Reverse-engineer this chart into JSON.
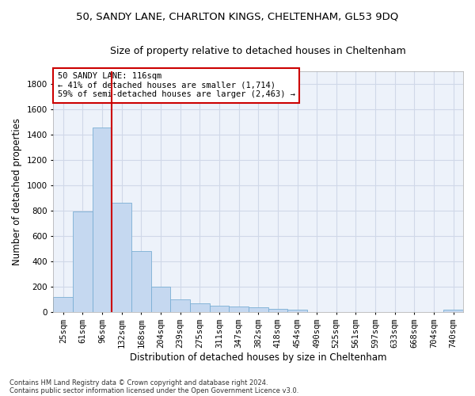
{
  "title_line1": "50, SANDY LANE, CHARLTON KINGS, CHELTENHAM, GL53 9DQ",
  "title_line2": "Size of property relative to detached houses in Cheltenham",
  "xlabel": "Distribution of detached houses by size in Cheltenham",
  "ylabel": "Number of detached properties",
  "footnote1": "Contains HM Land Registry data © Crown copyright and database right 2024.",
  "footnote2": "Contains public sector information licensed under the Open Government Licence v3.0.",
  "annotation_title": "50 SANDY LANE: 116sqm",
  "annotation_line1": "← 41% of detached houses are smaller (1,714)",
  "annotation_line2": "59% of semi-detached houses are larger (2,463) →",
  "bar_color": "#c5d8f0",
  "bar_edge_color": "#7aafd4",
  "vline_color": "#cc0000",
  "categories": [
    "25sqm",
    "61sqm",
    "96sqm",
    "132sqm",
    "168sqm",
    "204sqm",
    "239sqm",
    "275sqm",
    "311sqm",
    "347sqm",
    "382sqm",
    "418sqm",
    "454sqm",
    "490sqm",
    "525sqm",
    "561sqm",
    "597sqm",
    "633sqm",
    "668sqm",
    "704sqm",
    "740sqm"
  ],
  "values": [
    120,
    790,
    1455,
    860,
    480,
    200,
    100,
    65,
    50,
    40,
    35,
    25,
    20,
    0,
    0,
    0,
    0,
    0,
    0,
    0,
    15
  ],
  "ylim": [
    0,
    1900
  ],
  "yticks": [
    0,
    200,
    400,
    600,
    800,
    1000,
    1200,
    1400,
    1600,
    1800
  ],
  "grid_color": "#d0d8e8",
  "bg_color": "#edf2fa",
  "title_fontsize": 9.5,
  "subtitle_fontsize": 9,
  "axis_label_fontsize": 8.5,
  "tick_fontsize": 7.5,
  "annotation_fontsize": 7.5,
  "footnote_fontsize": 6.0
}
